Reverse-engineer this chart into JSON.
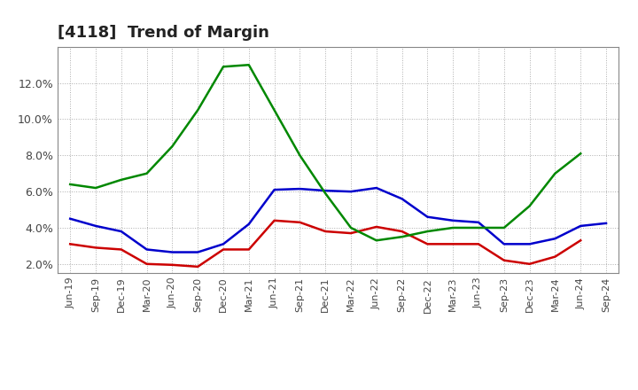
{
  "title": "[4118]  Trend of Margin",
  "x_labels": [
    "Jun-19",
    "Sep-19",
    "Dec-19",
    "Mar-20",
    "Jun-20",
    "Sep-20",
    "Dec-20",
    "Mar-21",
    "Jun-21",
    "Sep-21",
    "Dec-21",
    "Mar-22",
    "Jun-22",
    "Sep-22",
    "Dec-22",
    "Mar-23",
    "Jun-23",
    "Sep-23",
    "Dec-23",
    "Mar-24",
    "Jun-24",
    "Sep-24"
  ],
  "ordinary_income": [
    4.5,
    4.1,
    3.8,
    2.8,
    2.65,
    2.65,
    3.1,
    4.2,
    6.1,
    6.15,
    6.05,
    6.0,
    6.2,
    5.6,
    4.6,
    4.4,
    4.3,
    3.1,
    3.1,
    3.4,
    4.1,
    4.25
  ],
  "net_income": [
    3.1,
    2.9,
    2.8,
    2.0,
    1.95,
    1.85,
    2.8,
    2.8,
    4.4,
    4.3,
    3.8,
    3.7,
    4.05,
    3.8,
    3.1,
    3.1,
    3.1,
    2.2,
    2.0,
    2.4,
    3.3,
    null
  ],
  "operating_cashflow": [
    6.4,
    6.2,
    6.65,
    7.0,
    8.5,
    10.5,
    12.9,
    13.0,
    10.5,
    8.0,
    5.9,
    4.0,
    3.3,
    3.5,
    3.8,
    4.0,
    4.0,
    4.0,
    5.2,
    7.0,
    8.1,
    null
  ],
  "ordinary_income_color": "#0000cc",
  "net_income_color": "#cc0000",
  "operating_cashflow_color": "#008800",
  "ylim": [
    1.5,
    14.0
  ],
  "yticks": [
    2.0,
    4.0,
    6.0,
    8.0,
    10.0,
    12.0
  ],
  "background_color": "#ffffff",
  "grid_color": "#999999",
  "title_fontsize": 13,
  "tick_fontsize": 8,
  "legend_fontsize": 10
}
